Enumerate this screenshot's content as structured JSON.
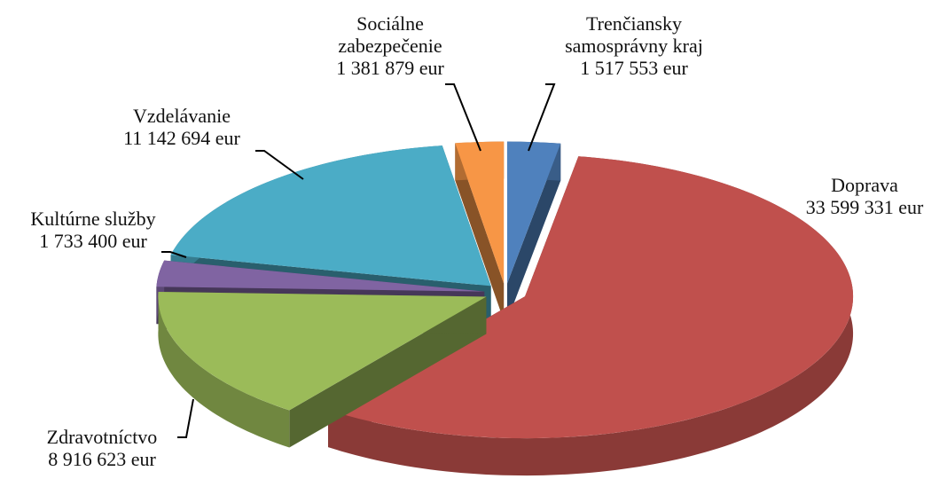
{
  "chart_data": {
    "type": "pie",
    "categories": [
      "Trenčiansky samosprávny kraj",
      "Doprava",
      "Zdravotníctvo",
      "Kultúrne služby",
      "Vzdelávanie",
      "Sociálne zabezpečenie"
    ],
    "values": [
      1517553,
      33599331,
      8916623,
      1733400,
      11142694,
      1381879
    ],
    "value_labels": [
      "1 517 553 eur",
      "33 599 331 eur",
      "8 916 623 eur",
      "1 733 400 eur",
      "11 142 694 eur",
      "1 381 879 eur"
    ],
    "colors": [
      "#4f81bd",
      "#c0504d",
      "#9bbb59",
      "#8064a2",
      "#4bacc6",
      "#f79646"
    ]
  }
}
